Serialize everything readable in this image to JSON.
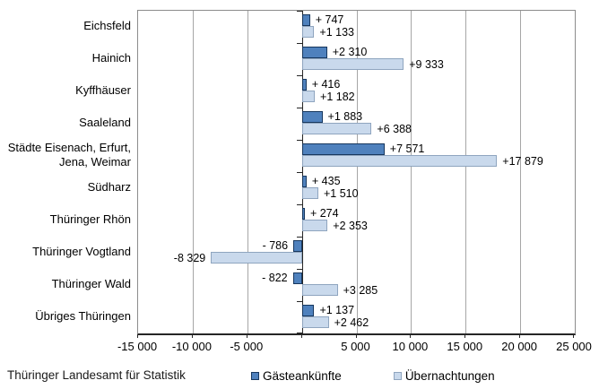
{
  "chart_data": {
    "type": "bar",
    "orientation": "horizontal",
    "title": "",
    "categories": [
      "Eichsfeld",
      "Hainich",
      "Kyffhäuser",
      "Saaleland",
      "Städte Eisenach, Erfurt,\nJena, Weimar",
      "Südharz",
      "Thüringer Rhön",
      "Thüringer Vogtland",
      "Thüringer Wald",
      "Übriges Thüringen"
    ],
    "series": [
      {
        "name": "Gästeankünfte",
        "color": "#4f81bd",
        "border_color": "#17375e",
        "values": [
          747,
          2310,
          416,
          1883,
          7571,
          435,
          274,
          -786,
          -822,
          1137
        ],
        "labels": [
          "+ 747",
          "+2 310",
          "+ 416",
          "+1 883",
          "+7 571",
          "+ 435",
          "+ 274",
          "- 786",
          "- 822",
          "+1 137"
        ]
      },
      {
        "name": "Übernachtungen",
        "color": "#c9d9ec",
        "border_color": "#8fa5bf",
        "values": [
          1133,
          9333,
          1182,
          6388,
          17879,
          1510,
          2353,
          -8329,
          3285,
          2462
        ],
        "labels": [
          "+1 133",
          "+9 333",
          "+1 182",
          "+6 388",
          "+17 879",
          "+1 510",
          "+2 353",
          "-8 329",
          "+3 285",
          "+2 462"
        ]
      }
    ],
    "xlim": [
      -15000,
      25000
    ],
    "x_ticks": [
      -15000,
      -10000,
      -5000,
      0,
      5000,
      10000,
      15000,
      20000,
      25000
    ],
    "x_tick_labels": [
      "-15 000",
      "-10 000",
      "-5 000",
      "",
      "5 000",
      "10 000",
      "15 000",
      "20 000",
      "25 000"
    ],
    "grid": true,
    "gridline_color": "#a6a6a6",
    "legend_position": "bottom"
  },
  "footer": {
    "source": "Thüringer Landesamt für Statistik"
  }
}
